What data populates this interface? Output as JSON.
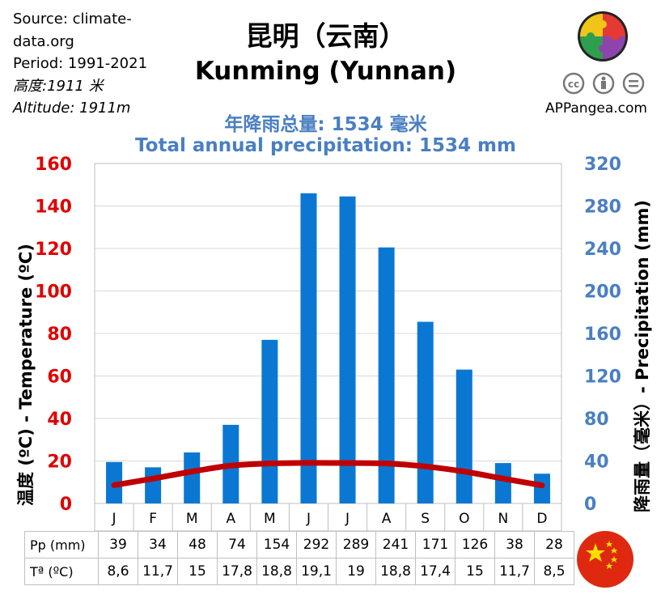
{
  "source": {
    "line1": "Source: climate-",
    "line2": "data.org",
    "period": "Period: 1991-2021",
    "altitude_cn": "高度:1911 米",
    "altitude_en": "Altitude: 1911m"
  },
  "title_cn": "昆明（云南）",
  "title_en": "Kunming (Yunnan)",
  "total_cn_label": "年降雨总量:",
  "total_cn_value": "1534 毫米",
  "total_en": "Total annual precipitation: 1534 mm",
  "site": "APPangea.com",
  "left_axis_label": "温度 (ºC) - Temperature  (ºC)",
  "right_axis_label": "降雨量（毫米）- Precipitation  (mm)",
  "table": {
    "pp_label": "Pp (mm)",
    "t_label": "Tª (ºC)",
    "pp_values": [
      "39",
      "34",
      "48",
      "74",
      "154",
      "292",
      "289",
      "241",
      "171",
      "126",
      "38",
      "28"
    ],
    "t_values": [
      "8,6",
      "11,7",
      "15",
      "17,8",
      "18,8",
      "19,1",
      "19",
      "18,8",
      "17,4",
      "15",
      "11,7",
      "8,5"
    ]
  },
  "colors": {
    "bar": "#0a78d2",
    "line": "#c00000",
    "left_axis": "#e00000",
    "right_axis": "#4a7fc1"
  },
  "chart_data": {
    "type": "bar",
    "categories": [
      "J",
      "F",
      "M",
      "A",
      "M",
      "J",
      "J",
      "A",
      "S",
      "O",
      "N",
      "D"
    ],
    "series": [
      {
        "name": "Pp (mm)",
        "type": "bar",
        "axis": "right",
        "values": [
          39,
          34,
          48,
          74,
          154,
          292,
          289,
          241,
          171,
          126,
          38,
          28
        ]
      },
      {
        "name": "Tª (ºC)",
        "type": "line",
        "axis": "left",
        "values": [
          8.6,
          11.7,
          15,
          17.8,
          18.8,
          19.1,
          19,
          18.8,
          17.4,
          15,
          11.7,
          8.5
        ]
      }
    ],
    "left_axis": {
      "label": "温度 (ºC) - Temperature  (ºC)",
      "ylim": [
        0,
        160
      ],
      "ticks": [
        "0",
        "20",
        "40",
        "60",
        "80",
        "100",
        "120",
        "140",
        "160"
      ]
    },
    "right_axis": {
      "label": "降雨量（毫米）- Precipitation  (mm)",
      "ylim": [
        0,
        320
      ],
      "ticks": [
        "0",
        "40",
        "80",
        "120",
        "160",
        "200",
        "240",
        "280",
        "320"
      ]
    },
    "title": "Kunming (Yunnan)",
    "grid": true
  }
}
